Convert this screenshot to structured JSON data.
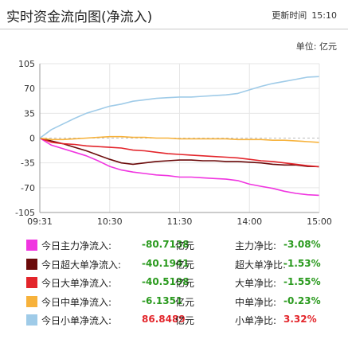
{
  "header": {
    "title": "实时资金流向图(净流入)",
    "update_label": "更新时间",
    "update_time": "15:10"
  },
  "unit_label": "单位: 亿元",
  "colors": {
    "main": "#f035e0",
    "super": "#6b0a0a",
    "large": "#e3252b",
    "medium": "#f7b23b",
    "small": "#9fcbe8",
    "positive": "#e3252b",
    "negative": "#2a9a1e"
  },
  "chart_data": {
    "type": "line",
    "x_ticks": [
      "09:31",
      "10:30",
      "11:30",
      "14:00",
      "15:00"
    ],
    "y_ticks": [
      105,
      70,
      35,
      0,
      -35,
      -70,
      -105
    ],
    "ylim": [
      -105,
      105
    ],
    "x_session": [
      0,
      240
    ],
    "series": [
      {
        "name": "今日主力净流入",
        "color": "#f035e0",
        "x": [
          0,
          5,
          10,
          20,
          30,
          40,
          50,
          60,
          70,
          80,
          90,
          100,
          110,
          120,
          130,
          140,
          150,
          160,
          170,
          180,
          190,
          200,
          210,
          220,
          230,
          240
        ],
        "y": [
          0,
          -5,
          -10,
          -15,
          -20,
          -25,
          -32,
          -40,
          -45,
          -48,
          -50,
          -52,
          -53,
          -55,
          -55,
          -56,
          -57,
          -58,
          -60,
          -65,
          -68,
          -71,
          -75,
          -78,
          -80,
          -80.7
        ]
      },
      {
        "name": "今日超大单净流入",
        "color": "#6b0a0a",
        "x": [
          0,
          5,
          10,
          20,
          30,
          40,
          50,
          60,
          70,
          80,
          90,
          100,
          110,
          120,
          130,
          140,
          150,
          160,
          170,
          180,
          190,
          200,
          210,
          220,
          230,
          240
        ],
        "y": [
          0,
          -2,
          -4,
          -8,
          -13,
          -18,
          -24,
          -30,
          -35,
          -37,
          -35,
          -33,
          -32,
          -31,
          -31,
          -32,
          -32,
          -33,
          -33,
          -34,
          -35,
          -37,
          -38,
          -38,
          -40,
          -40.2
        ]
      },
      {
        "name": "今日大单净流入",
        "color": "#e3252b",
        "x": [
          0,
          5,
          10,
          20,
          30,
          40,
          50,
          60,
          70,
          80,
          90,
          100,
          110,
          120,
          130,
          140,
          150,
          160,
          170,
          180,
          190,
          200,
          210,
          220,
          230,
          240
        ],
        "y": [
          0,
          -3,
          -6,
          -8,
          -9,
          -11,
          -12,
          -13,
          -14,
          -17,
          -18,
          -20,
          -22,
          -23,
          -24,
          -25,
          -26,
          -27,
          -28,
          -30,
          -32,
          -33,
          -35,
          -37,
          -39,
          -40.5
        ]
      },
      {
        "name": "今日中单净流入",
        "color": "#f7b23b",
        "x": [
          0,
          10,
          20,
          30,
          40,
          50,
          60,
          70,
          80,
          90,
          100,
          110,
          120,
          130,
          140,
          150,
          160,
          170,
          180,
          190,
          200,
          210,
          220,
          230,
          240
        ],
        "y": [
          0,
          -2,
          -2,
          -1,
          0,
          1,
          2,
          2,
          1,
          1,
          0,
          0,
          -1,
          -1,
          -1,
          -1,
          -1,
          -2,
          -2,
          -2,
          -3,
          -3,
          -4,
          -5,
          -6.1
        ]
      },
      {
        "name": "今日小单净流入",
        "color": "#9fcbe8",
        "x": [
          0,
          5,
          10,
          20,
          30,
          40,
          50,
          60,
          70,
          80,
          90,
          100,
          110,
          120,
          130,
          140,
          150,
          160,
          170,
          180,
          190,
          200,
          210,
          220,
          230,
          240
        ],
        "y": [
          0,
          6,
          12,
          20,
          28,
          35,
          40,
          45,
          48,
          52,
          54,
          56,
          57,
          58,
          58,
          59,
          60,
          61,
          63,
          68,
          73,
          77,
          80,
          83,
          86,
          86.8
        ]
      }
    ]
  },
  "legend": [
    {
      "name": "今日主力净流入:",
      "value": "-80.7138",
      "unit": "亿元",
      "ratio_label": "主力净比:",
      "ratio": "-3.08%",
      "color": "#f035e0",
      "sign": "neg"
    },
    {
      "name": "今日超大单净流入:",
      "value": "-40.1941",
      "unit": "亿元",
      "ratio_label": "超大单净比:",
      "ratio": "-1.53%",
      "color": "#6b0a0a",
      "sign": "neg"
    },
    {
      "name": "今日大单净流入:",
      "value": "-40.5198",
      "unit": "亿元",
      "ratio_label": "大单净比:",
      "ratio": "-1.55%",
      "color": "#e3252b",
      "sign": "neg"
    },
    {
      "name": "今日中单净流入:",
      "value": "-6.1351",
      "unit": "亿元",
      "ratio_label": "中单净比:",
      "ratio": "-0.23%",
      "color": "#f7b23b",
      "sign": "neg"
    },
    {
      "name": "今日小单净流入:",
      "value": "86.8489",
      "unit": "亿元",
      "ratio_label": "小单净比:",
      "ratio": "3.32%",
      "color": "#9fcbe8",
      "sign": "pos"
    }
  ]
}
